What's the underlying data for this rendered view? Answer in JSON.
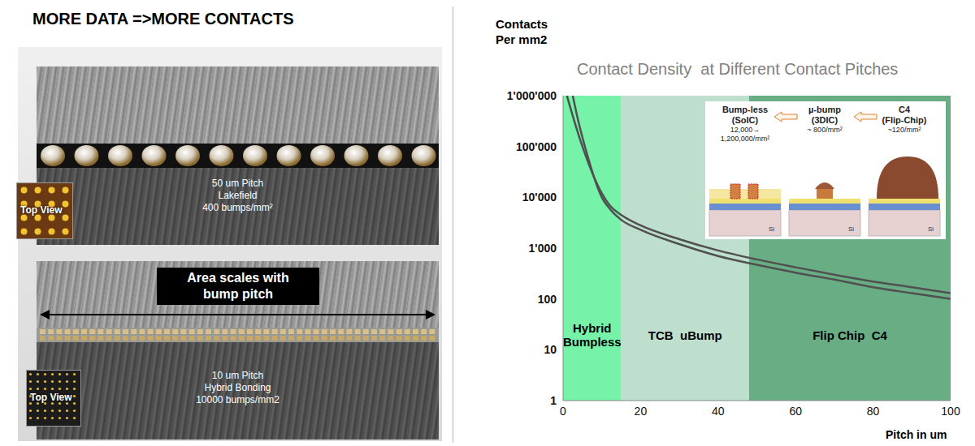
{
  "heading": "MORE DATA =>MORE CONTACTS",
  "panels": [
    {
      "lines": [
        "50 um Pitch",
        "Lakefield",
        "400 bumps/mm²"
      ],
      "top_view": "Top View"
    },
    {
      "banner": [
        "Area scales with",
        "bump pitch"
      ],
      "lines": [
        "10 um Pitch",
        "Hybrid Bonding",
        "10000 bumps/mm2"
      ],
      "top_view": "Top View"
    }
  ],
  "chart_data": {
    "type": "line",
    "title": "Contact Density  at Different Contact Pitches",
    "ylabel": "Contacts Per mm2",
    "xlabel": "Pitch in um",
    "log": "y",
    "grid": true,
    "xlim": [
      0,
      100
    ],
    "xticks": [
      0,
      20,
      40,
      60,
      80,
      100
    ],
    "ylim": [
      1,
      1000000
    ],
    "yticks": [
      1,
      10,
      100,
      {
        "value": 1000,
        "label": "1'000"
      },
      {
        "value": 10000,
        "label": "10'000"
      },
      {
        "value": 100000,
        "label": "100'000"
      },
      {
        "value": 1000000,
        "label": "1'000'000"
      }
    ],
    "series": [
      {
        "color": "#505050",
        "x": [
          1,
          3,
          5,
          8,
          10,
          12,
          15,
          20,
          30,
          40,
          50,
          60,
          70,
          80,
          90,
          100
        ],
        "values": [
          1000000,
          300000,
          100000,
          25000,
          12000,
          7000,
          4500,
          2800,
          1500,
          900,
          600,
          420,
          300,
          220,
          170,
          130
        ]
      },
      {
        "color": "#505050",
        "x": [
          2.5,
          4,
          6,
          9,
          10,
          12,
          15,
          20,
          30,
          40,
          50,
          60,
          70,
          80,
          90,
          100
        ],
        "values": [
          1000000,
          300000,
          80000,
          15000,
          10000,
          6000,
          3600,
          2300,
          1200,
          700,
          470,
          330,
          240,
          170,
          130,
          100
        ]
      }
    ],
    "regions": [
      {
        "label_lines": [
          "Hybrid",
          "Bumpless"
        ],
        "x0": 0,
        "x1": 15,
        "color": "#5ef09a"
      },
      {
        "label_lines": [
          "TCB  uBump"
        ],
        "x0": 15,
        "x1": 48,
        "color": "#b3d9c4"
      },
      {
        "label_lines": [
          "Flip Chip  C4"
        ],
        "x0": 48,
        "x1": 100,
        "color": "#4f9f70"
      }
    ],
    "inset": {
      "items": [
        {
          "title": [
            "Bump-less",
            "(SoIC)"
          ],
          "density": [
            "12,000→",
            "1,200,000/mm²"
          ]
        },
        {
          "title": [
            "µ-bump",
            "(3DIC)"
          ],
          "density": [
            "~ 800/mm²"
          ]
        },
        {
          "title": [
            "C4",
            "(Flip-Chip)"
          ],
          "density": [
            "~120/mm²"
          ]
        }
      ],
      "substrate_label": "Si"
    }
  }
}
